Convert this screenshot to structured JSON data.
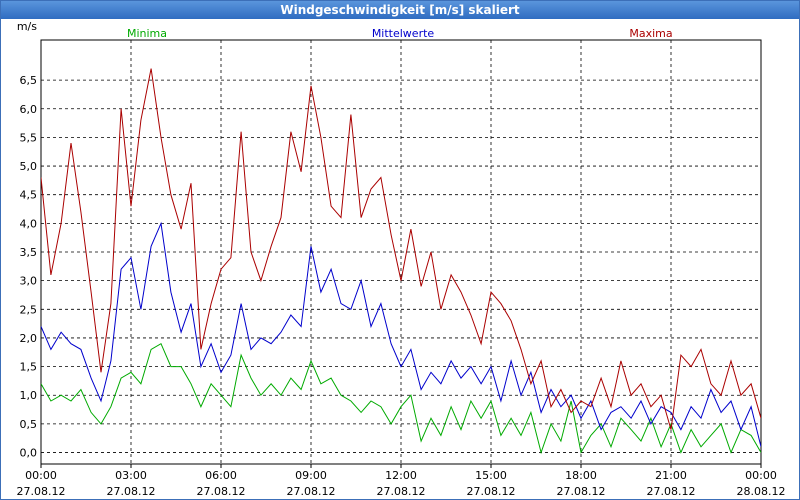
{
  "window": {
    "title": "Windgeschwindigkeit [m/s] skaliert"
  },
  "chart_data": {
    "type": "line",
    "title": "Windgeschwindigkeit [m/s] skaliert",
    "ylabel": "m/s",
    "xlabel": "",
    "ylim": [
      -0.2,
      7.2
    ],
    "xlim": [
      0,
      24
    ],
    "grid": true,
    "legend_position": "top",
    "yticks": [
      {
        "v": 0.0,
        "label": "0,0"
      },
      {
        "v": 0.5,
        "label": "0,5"
      },
      {
        "v": 1.0,
        "label": "1,0"
      },
      {
        "v": 1.5,
        "label": "1,5"
      },
      {
        "v": 2.0,
        "label": "2,0"
      },
      {
        "v": 2.5,
        "label": "2,5"
      },
      {
        "v": 3.0,
        "label": "3,0"
      },
      {
        "v": 3.5,
        "label": "3,5"
      },
      {
        "v": 4.0,
        "label": "4,0"
      },
      {
        "v": 4.5,
        "label": "4,5"
      },
      {
        "v": 5.0,
        "label": "5,0"
      },
      {
        "v": 5.5,
        "label": "5,5"
      },
      {
        "v": 6.0,
        "label": "6,0"
      },
      {
        "v": 6.5,
        "label": "6,5"
      }
    ],
    "xticks": [
      {
        "v": 0,
        "time": "00:00",
        "date": "27.08.12"
      },
      {
        "v": 3,
        "time": "03:00",
        "date": "27.08.12"
      },
      {
        "v": 6,
        "time": "06:00",
        "date": "27.08.12"
      },
      {
        "v": 9,
        "time": "09:00",
        "date": "27.08.12"
      },
      {
        "v": 12,
        "time": "12:00",
        "date": "27.08.12"
      },
      {
        "v": 15,
        "time": "15:00",
        "date": "27.08.12"
      },
      {
        "v": 18,
        "time": "18:00",
        "date": "27.08.12"
      },
      {
        "v": 21,
        "time": "21:00",
        "date": "27.08.12"
      },
      {
        "v": 24,
        "time": "00:00",
        "date": "28.08.12"
      }
    ],
    "series": [
      {
        "name": "Minima",
        "color": "#00aa00",
        "x": [
          0,
          0.33,
          0.67,
          1,
          1.33,
          1.67,
          2,
          2.33,
          2.67,
          3,
          3.33,
          3.67,
          4,
          4.33,
          4.67,
          5,
          5.33,
          5.67,
          6,
          6.33,
          6.67,
          7,
          7.33,
          7.67,
          8,
          8.33,
          8.67,
          9,
          9.33,
          9.67,
          10,
          10.33,
          10.67,
          11,
          11.33,
          11.67,
          12,
          12.33,
          12.67,
          13,
          13.33,
          13.67,
          14,
          14.33,
          14.67,
          15,
          15.33,
          15.67,
          16,
          16.33,
          16.67,
          17,
          17.33,
          17.67,
          18,
          18.33,
          18.67,
          19,
          19.33,
          19.67,
          20,
          20.33,
          20.67,
          21,
          21.33,
          21.67,
          22,
          22.33,
          22.67,
          23,
          23.33,
          23.67,
          24
        ],
        "values": [
          1.2,
          0.9,
          1.0,
          0.9,
          1.1,
          0.7,
          0.5,
          0.8,
          1.3,
          1.4,
          1.2,
          1.8,
          1.9,
          1.5,
          1.5,
          1.2,
          0.8,
          1.2,
          1.0,
          0.8,
          1.7,
          1.3,
          1.0,
          1.2,
          1.0,
          1.3,
          1.1,
          1.6,
          1.2,
          1.3,
          1.0,
          0.9,
          0.7,
          0.9,
          0.8,
          0.5,
          0.8,
          1.0,
          0.2,
          0.6,
          0.3,
          0.8,
          0.4,
          0.9,
          0.6,
          0.9,
          0.3,
          0.6,
          0.3,
          0.7,
          0.0,
          0.5,
          0.2,
          0.9,
          0.0,
          0.3,
          0.5,
          0.1,
          0.6,
          0.4,
          0.2,
          0.6,
          0.1,
          0.5,
          0.0,
          0.4,
          0.1,
          0.3,
          0.5,
          0.0,
          0.4,
          0.3,
          0.0
        ]
      },
      {
        "name": "Mittelwerte",
        "color": "#0000cc",
        "x": [
          0,
          0.33,
          0.67,
          1,
          1.33,
          1.67,
          2,
          2.33,
          2.67,
          3,
          3.33,
          3.67,
          4,
          4.33,
          4.67,
          5,
          5.33,
          5.67,
          6,
          6.33,
          6.67,
          7,
          7.33,
          7.67,
          8,
          8.33,
          8.67,
          9,
          9.33,
          9.67,
          10,
          10.33,
          10.67,
          11,
          11.33,
          11.67,
          12,
          12.33,
          12.67,
          13,
          13.33,
          13.67,
          14,
          14.33,
          14.67,
          15,
          15.33,
          15.67,
          16,
          16.33,
          16.67,
          17,
          17.33,
          17.67,
          18,
          18.33,
          18.67,
          19,
          19.33,
          19.67,
          20,
          20.33,
          20.67,
          21,
          21.33,
          21.67,
          22,
          22.33,
          22.67,
          23,
          23.33,
          23.67,
          24
        ],
        "values": [
          2.2,
          1.8,
          2.1,
          1.9,
          1.8,
          1.3,
          0.9,
          1.6,
          3.2,
          3.4,
          2.5,
          3.6,
          4.0,
          2.8,
          2.1,
          2.6,
          1.5,
          1.9,
          1.4,
          1.7,
          2.6,
          1.8,
          2.0,
          1.9,
          2.1,
          2.4,
          2.2,
          3.6,
          2.8,
          3.2,
          2.6,
          2.5,
          3.0,
          2.2,
          2.6,
          1.9,
          1.5,
          1.8,
          1.1,
          1.4,
          1.2,
          1.6,
          1.3,
          1.5,
          1.2,
          1.5,
          0.9,
          1.6,
          1.0,
          1.4,
          0.7,
          1.1,
          0.8,
          1.0,
          0.6,
          0.9,
          0.4,
          0.7,
          0.8,
          0.6,
          0.9,
          0.5,
          0.8,
          0.7,
          0.4,
          0.8,
          0.6,
          1.1,
          0.7,
          0.9,
          0.4,
          0.8,
          0.1
        ]
      },
      {
        "name": "Maxima",
        "color": "#aa0000",
        "x": [
          0,
          0.33,
          0.67,
          1,
          1.33,
          1.67,
          2,
          2.33,
          2.67,
          3,
          3.33,
          3.67,
          4,
          4.33,
          4.67,
          5,
          5.33,
          5.67,
          6,
          6.33,
          6.67,
          7,
          7.33,
          7.67,
          8,
          8.33,
          8.67,
          9,
          9.33,
          9.67,
          10,
          10.33,
          10.67,
          11,
          11.33,
          11.67,
          12,
          12.33,
          12.67,
          13,
          13.33,
          13.67,
          14,
          14.33,
          14.67,
          15,
          15.33,
          15.67,
          16,
          16.33,
          16.67,
          17,
          17.33,
          17.67,
          18,
          18.33,
          18.67,
          19,
          19.33,
          19.67,
          20,
          20.33,
          20.67,
          21,
          21.33,
          21.67,
          22,
          22.33,
          22.67,
          23,
          23.33,
          23.67,
          24
        ],
        "values": [
          4.8,
          3.1,
          4.0,
          5.4,
          4.2,
          2.8,
          1.4,
          2.6,
          6.0,
          4.3,
          5.8,
          6.7,
          5.5,
          4.5,
          3.9,
          4.7,
          1.8,
          2.6,
          3.2,
          3.4,
          5.6,
          3.5,
          3.0,
          3.6,
          4.1,
          5.6,
          4.9,
          6.4,
          5.5,
          4.3,
          4.1,
          5.9,
          4.1,
          4.6,
          4.8,
          3.8,
          3.0,
          3.9,
          2.9,
          3.5,
          2.5,
          3.1,
          2.8,
          2.4,
          1.9,
          2.8,
          2.6,
          2.3,
          1.8,
          1.2,
          1.6,
          0.8,
          1.1,
          0.7,
          0.9,
          0.8,
          1.3,
          0.8,
          1.6,
          1.0,
          1.2,
          0.8,
          1.0,
          0.4,
          1.7,
          1.5,
          1.8,
          1.2,
          1.0,
          1.6,
          1.0,
          1.2,
          0.6
        ]
      }
    ]
  }
}
